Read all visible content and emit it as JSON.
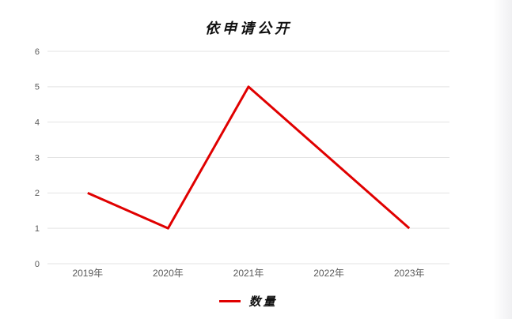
{
  "page": {
    "background": "#ffffff",
    "edge_shade_color": "rgba(130,130,150,0.12)"
  },
  "chart_data": {
    "type": "line",
    "title": "依申请公开",
    "categories": [
      "2019年",
      "2020年",
      "2021年",
      "2022年",
      "2023年"
    ],
    "series": [
      {
        "name": "数量",
        "values": [
          2,
          1,
          5,
          3,
          1
        ],
        "color": "#e00000"
      }
    ],
    "xlabel": "",
    "ylabel": "",
    "ylim": [
      0,
      6
    ],
    "yticks": [
      0,
      1,
      2,
      3,
      4,
      5,
      6
    ],
    "grid": "horizontal",
    "gridline_color": "#e3e3e3",
    "tick_label_color": "#595959",
    "legend_position": "bottom",
    "line_width": 3
  }
}
